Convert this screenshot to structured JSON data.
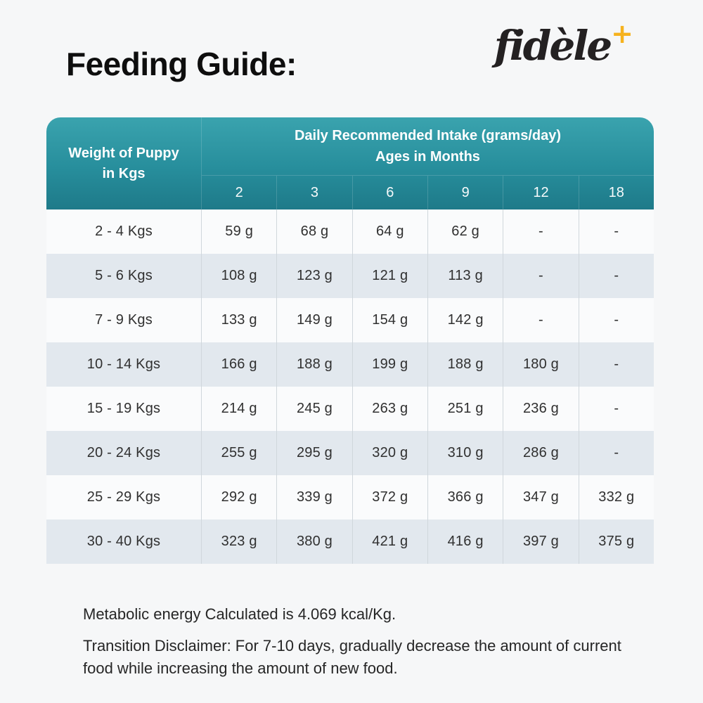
{
  "page": {
    "title": "Feeding Guide:",
    "brand": {
      "name": "fidèle",
      "plus": "+"
    }
  },
  "chart_data": {
    "type": "table",
    "corner_header_line1": "Weight of Puppy",
    "corner_header_line2": "in Kgs",
    "group_header_line1": "Daily Recommended Intake (grams/day)",
    "group_header_line2": "Ages in Months",
    "age_columns": [
      "2",
      "3",
      "6",
      "9",
      "12",
      "18"
    ],
    "rows": [
      {
        "weight": "2 - 4 Kgs",
        "values": [
          "59 g",
          "68 g",
          "64 g",
          "62 g",
          "-",
          "-"
        ]
      },
      {
        "weight": "5 - 6 Kgs",
        "values": [
          "108 g",
          "123 g",
          "121 g",
          "113 g",
          "-",
          "-"
        ]
      },
      {
        "weight": "7 - 9 Kgs",
        "values": [
          "133 g",
          "149 g",
          "154 g",
          "142 g",
          "-",
          "-"
        ]
      },
      {
        "weight": "10 - 14 Kgs",
        "values": [
          "166 g",
          "188 g",
          "199 g",
          "188 g",
          "180 g",
          "-"
        ]
      },
      {
        "weight": "15 - 19 Kgs",
        "values": [
          "214 g",
          "245 g",
          "263 g",
          "251 g",
          "236 g",
          "-"
        ]
      },
      {
        "weight": "20 - 24 Kgs",
        "values": [
          "255 g",
          "295 g",
          "320 g",
          "310 g",
          "286 g",
          "-"
        ]
      },
      {
        "weight": "25 - 29 Kgs",
        "values": [
          "292 g",
          "339 g",
          "372 g",
          "366 g",
          "347 g",
          "332 g"
        ]
      },
      {
        "weight": "30 - 40 Kgs",
        "values": [
          "323 g",
          "380 g",
          "421 g",
          "416 g",
          "397 g",
          "375 g"
        ]
      }
    ]
  },
  "notes": {
    "metabolic": "Metabolic energy Calculated is 4.069 kcal/Kg.",
    "transition": "Transition Disclaimer: For 7-10 days, gradually decrease the amount of current food while increasing the amount of new food."
  },
  "colors": {
    "page_bg": "#f6f7f8",
    "header_teal_top": "#3aa3ae",
    "header_teal_bottom": "#1e7a89",
    "row_light": "#fafbfc",
    "row_shaded": "#e2e8ee",
    "grid_line": "#d0d7dc",
    "brand_gold": "#f6b21e",
    "logo_black": "#242122"
  }
}
